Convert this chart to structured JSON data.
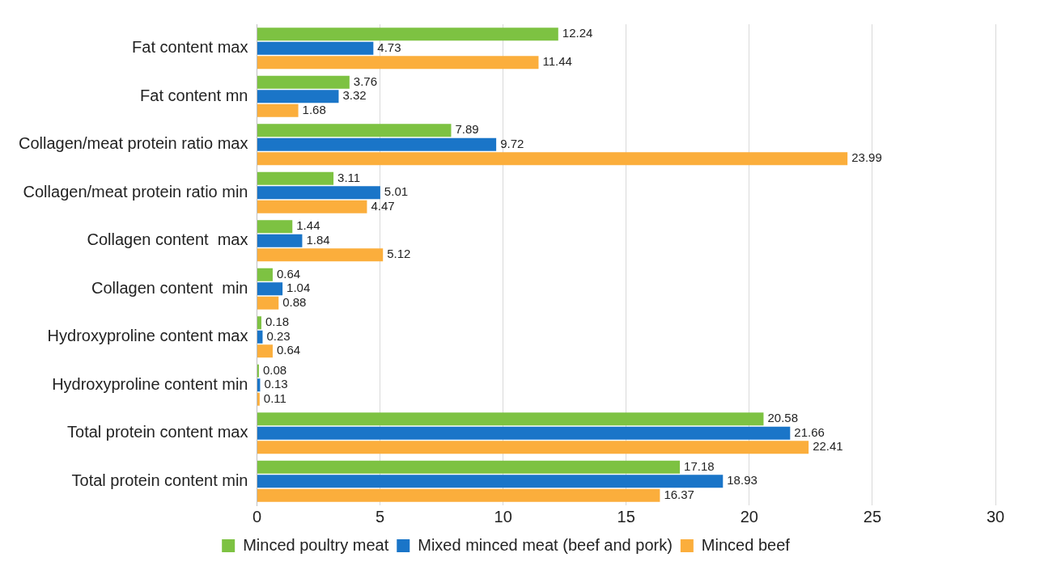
{
  "chart_data": {
    "type": "bar",
    "orientation": "horizontal",
    "categories": [
      "Fat content max",
      "Fat content mn",
      "Collagen/meat protein ratio max",
      "Collagen/meat protein ratio min",
      "Collagen content  max",
      "Collagen content  min",
      "Hydroxyproline content max",
      "Hydroxyproline content min",
      "Total protein content max",
      "Total protein content min"
    ],
    "series": [
      {
        "name": "Minced poultry meat",
        "color": "#7dc242",
        "values": [
          12.24,
          3.76,
          7.89,
          3.11,
          1.44,
          0.64,
          0.18,
          0.08,
          20.58,
          17.18
        ]
      },
      {
        "name": "Mixed minced meat (beef and pork)",
        "color": "#1a75c8",
        "values": [
          4.73,
          3.32,
          9.72,
          5.01,
          1.84,
          1.04,
          0.23,
          0.13,
          21.66,
          18.93
        ]
      },
      {
        "name": "Minced beef",
        "color": "#fbae3c",
        "values": [
          11.44,
          1.68,
          23.99,
          4.47,
          5.12,
          0.88,
          0.64,
          0.11,
          22.41,
          16.37
        ]
      }
    ],
    "xlim": [
      0,
      30
    ],
    "xticks": [
      0,
      5,
      10,
      15,
      20,
      25,
      30
    ],
    "grid": "x",
    "legend": "bottom",
    "data_labels": true
  }
}
